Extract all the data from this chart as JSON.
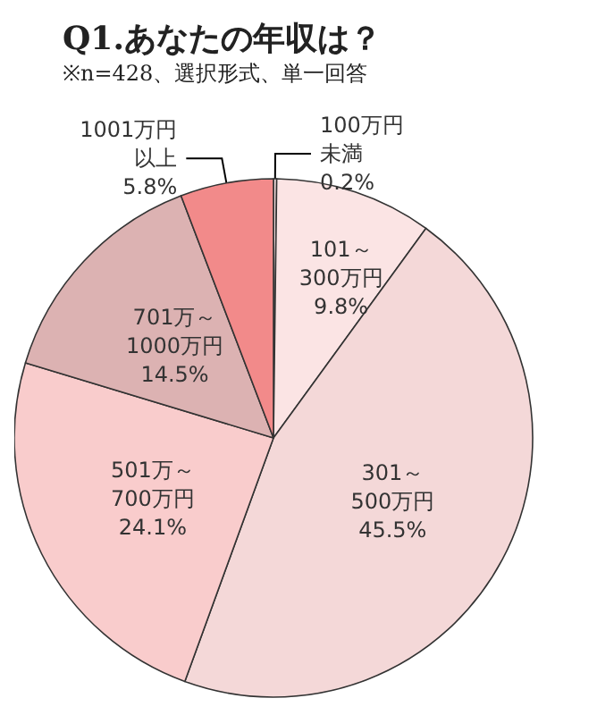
{
  "chart_data": {
    "type": "pie",
    "title": "Q1.あなたの年収は？",
    "subtitle": "※n=428、選択形式、単一回答",
    "categories": [
      "100万円未満",
      "101～300万円",
      "301～500万円",
      "501万～700万円",
      "701万～1000万円",
      "1001万円以上"
    ],
    "values": [
      0.2,
      9.8,
      45.5,
      24.1,
      14.5,
      5.8
    ],
    "colors": [
      "#fbe4e4",
      "#fbe4e4",
      "#f4d8d8",
      "#f9cccc",
      "#dcb2b2",
      "#f28a8a"
    ],
    "value_labels": [
      "0.2%",
      "9.8%",
      "45.5%",
      "24.1%",
      "14.5%",
      "5.8%"
    ],
    "legend": false
  }
}
